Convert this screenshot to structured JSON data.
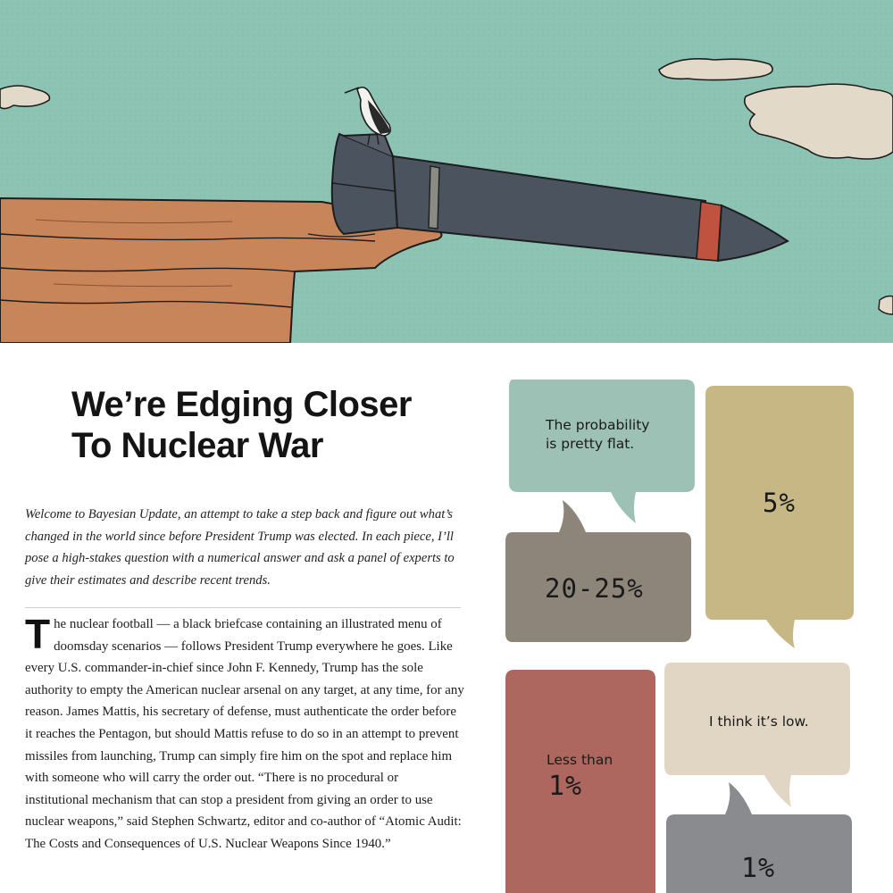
{
  "article": {
    "title_line1": "We’re Edging Closer",
    "title_line2": "To Nuclear War",
    "dek": "Welcome to Bayesian Update, an attempt to take a step back and figure out what’s changed in the world since before President Trump was elected. In each piece, I’ll pose a high-stakes question with a numerical answer and ask a panel of experts to give their estimates and describe recent trends.",
    "body_dropcap": "T",
    "body": "he nuclear football — a black briefcase containing an illustrated menu of doomsday scenarios — follows President Trump everywhere he goes. Like every U.S. commander-in-chief since John F. Kennedy, Trump has the sole authority to empty the American nuclear arsenal on any target, at any time, for any reason. James Mattis, his secretary of defense, must authenticate the order before it reaches the Pentagon, but should Mattis refuse to do so in an attempt to prevent missiles from launching, Trump can simply fire him on the spot and replace him with someone who will carry the order out. “There is no procedural or institutional mechanism that can stop a president from giving an order to use nuclear weapons,” said Stephen Schwartz, editor and co-author of “Atomic Audit: The Costs and Consequences of U.S. Nuclear Weapons Since 1940.”"
  },
  "bubbles": {
    "flat": "The probability is pretty flat.",
    "twenty": "20-25%",
    "five": "5%",
    "less_than": "Less than",
    "less_value": "1%",
    "low": "I think it’s low.",
    "one": "1%"
  },
  "colors": {
    "sky": "#8cc3b3",
    "cliff": "#c9855a",
    "missile": "#4b535e",
    "bubble_mint": "#9dc2b5",
    "bubble_taupe": "#8e857a",
    "bubble_khaki": "#c6b784",
    "bubble_red": "#ad675e",
    "bubble_cream": "#e1d6c4",
    "bubble_gray": "#8a8b8e"
  }
}
